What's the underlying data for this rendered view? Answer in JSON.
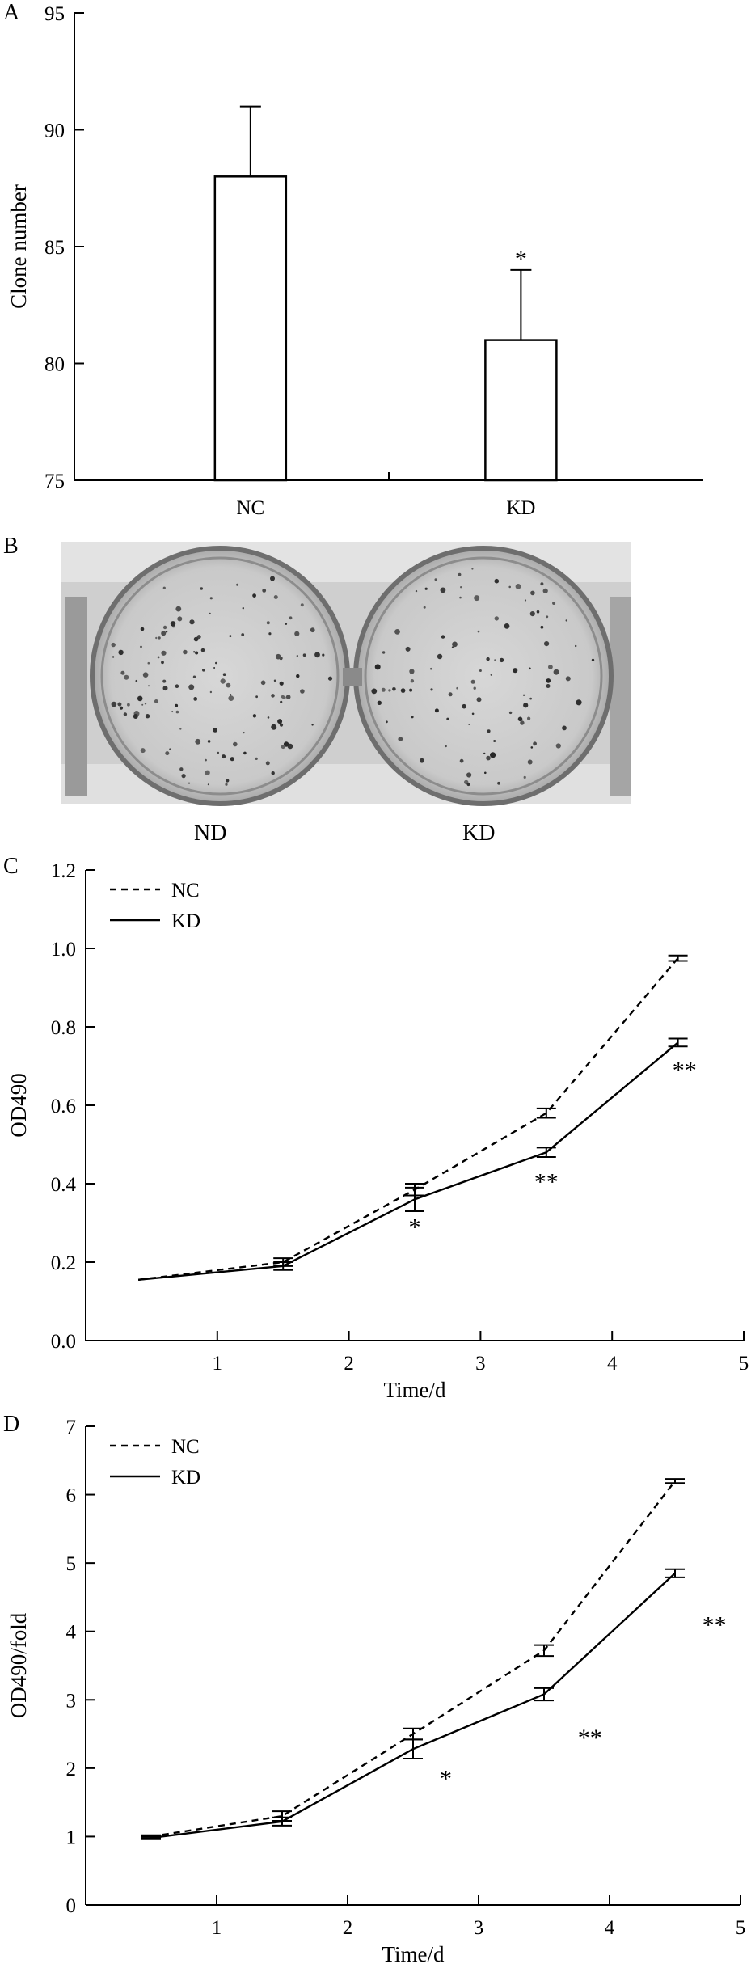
{
  "panels": {
    "A": "A",
    "B": "B",
    "C": "C",
    "D": "D"
  },
  "photo": {
    "labels": [
      "ND",
      "KD"
    ]
  },
  "chart_data": [
    {
      "type": "bar",
      "panel": "A",
      "categories": [
        "NC",
        "KD"
      ],
      "values": [
        88,
        81
      ],
      "errors": [
        3,
        3
      ],
      "significance": [
        "",
        "*"
      ],
      "xlabel": "",
      "ylabel": "Clone number",
      "ylim": [
        75,
        95
      ],
      "yticks": [
        75,
        80,
        85,
        90,
        95
      ],
      "grid": false
    },
    {
      "type": "line",
      "panel": "C",
      "xlabel": "Time/d",
      "ylabel": "OD490",
      "xlim": [
        0,
        5
      ],
      "ylim": [
        0,
        1.2
      ],
      "xticks": [
        1,
        2,
        3,
        4,
        5
      ],
      "yticks": [
        "0.0",
        "0.2",
        "0.4",
        "0.6",
        "0.8",
        "1.0",
        "1.2"
      ],
      "legend_position": "top-left",
      "grid": false,
      "series": [
        {
          "name": "NC",
          "style": "dashed",
          "x": [
            0.4,
            1.5,
            2.5,
            3.5,
            4.5
          ],
          "y": [
            0.155,
            0.2,
            0.385,
            0.58,
            0.975
          ],
          "err": [
            0,
            0.01,
            0.015,
            0.012,
            0.007
          ]
        },
        {
          "name": "KD",
          "style": "solid",
          "x": [
            0.4,
            1.5,
            2.5,
            3.5,
            4.5
          ],
          "y": [
            0.155,
            0.19,
            0.36,
            0.48,
            0.76
          ],
          "err": [
            0,
            0.01,
            0.03,
            0.012,
            0.01
          ]
        }
      ],
      "annotations": [
        {
          "text": "*",
          "x": 2.5,
          "y": 0.29
        },
        {
          "text": "**",
          "x": 3.5,
          "y": 0.405
        },
        {
          "text": "**",
          "x": 4.55,
          "y": 0.69
        }
      ]
    },
    {
      "type": "line",
      "panel": "D",
      "xlabel": "Time/d",
      "ylabel": "OD490/fold",
      "xlim": [
        0,
        5
      ],
      "ylim": [
        0,
        7
      ],
      "xticks": [
        1,
        2,
        3,
        4,
        5
      ],
      "yticks": [
        "0",
        "1",
        "2",
        "3",
        "4",
        "5",
        "6",
        "7"
      ],
      "legend_position": "top-left",
      "grid": false,
      "series": [
        {
          "name": "NC",
          "style": "dashed",
          "x": [
            0.5,
            1.5,
            2.5,
            3.5,
            4.5
          ],
          "y": [
            1.0,
            1.3,
            2.5,
            3.72,
            6.2
          ],
          "err": [
            0.02,
            0.07,
            0.08,
            0.08,
            0.03
          ]
        },
        {
          "name": "KD",
          "style": "solid",
          "x": [
            0.5,
            1.5,
            2.5,
            3.5,
            4.5
          ],
          "y": [
            0.98,
            1.22,
            2.28,
            3.08,
            4.85
          ],
          "err": [
            0.02,
            0.06,
            0.14,
            0.09,
            0.06
          ]
        }
      ],
      "annotations": [
        {
          "text": "*",
          "x": 2.75,
          "y": 1.85
        },
        {
          "text": "**",
          "x": 3.85,
          "y": 2.45
        },
        {
          "text": "**",
          "x": 4.8,
          "y": 4.1
        }
      ]
    }
  ]
}
